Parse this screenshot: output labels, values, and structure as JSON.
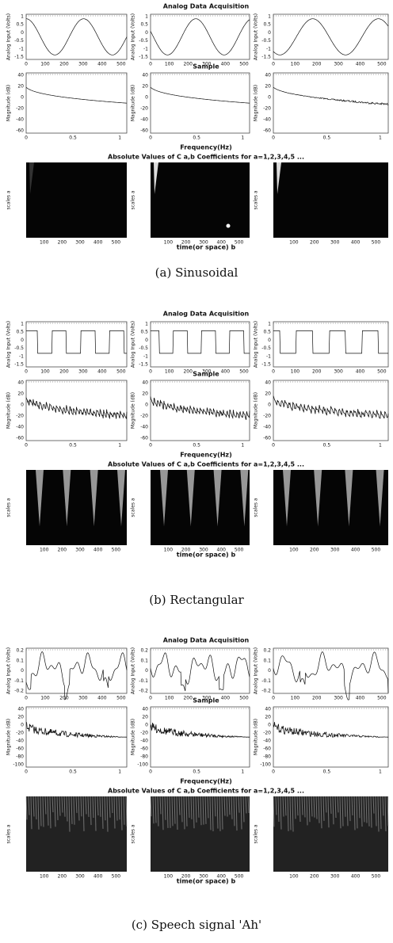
{
  "panels": [
    {
      "caption": "(a) Sinusoidal",
      "title_top": "Analog Data Acquisition",
      "xlabel_top": "Sample",
      "ylabel_top": "Analog Input (Volts)",
      "xticks_top": [
        "0",
        "100",
        "200",
        "300",
        "400",
        "500"
      ],
      "yticks_top": [
        "1",
        "0.5",
        "0",
        "-0.5",
        "-1",
        "-1.5"
      ],
      "xlabel_mid": "Frequency(Hz)",
      "ylabel_mid": "Magnitude (dB)",
      "xticks_mid": [
        "0",
        "0.5",
        "1"
      ],
      "yticks_mid": [
        "40",
        "20",
        "0",
        "-20",
        "-40",
        "-60"
      ],
      "title_bottom": "Absolute Values of C a,b Coefficients for a=1,2,3,4,5 ...",
      "xlabel_bottom": "time(or space) b",
      "ylabel_bottom": "scales a",
      "xticks_bottom": [
        "100",
        "200",
        "300",
        "400",
        "500"
      ]
    },
    {
      "caption": "(b) Rectangular",
      "title_top": "Analog Data Acquisition",
      "xlabel_top": "Sample",
      "ylabel_top": "Analog Input (Volts)",
      "xticks_top": [
        "0",
        "100",
        "200",
        "300",
        "400",
        "500"
      ],
      "yticks_top": [
        "1",
        "0.5",
        "0",
        "-0.5",
        "-1",
        "-1.5"
      ],
      "xlabel_mid": "Frequency(Hz)",
      "ylabel_mid": "Magnitude (dB)",
      "xticks_mid": [
        "0",
        "0.5",
        "1"
      ],
      "yticks_mid": [
        "40",
        "20",
        "0",
        "-20",
        "-40",
        "-60"
      ],
      "title_bottom": "Absolute Values of C a,b Coefficients for a=1,2,3,4,5 ...",
      "xlabel_bottom": "time(or space) b",
      "ylabel_bottom": "scales a",
      "xticks_bottom": [
        "100",
        "200",
        "300",
        "400",
        "500"
      ]
    },
    {
      "caption": "(c) Speech signal 'Ah'",
      "title_top": "Analog Data Acquisition",
      "xlabel_top": "Sample",
      "ylabel_top": "Analog Input (Volts)",
      "xticks_top": [
        "0",
        "100",
        "200",
        "300",
        "400",
        "500"
      ],
      "yticks_top": [
        "0.2",
        "0.1",
        "0",
        "-0.1",
        "-0.2"
      ],
      "xlabel_mid": "Frequency(Hz)",
      "ylabel_mid": "Magnitude (dB)",
      "xticks_mid": [
        "0",
        "0.5",
        "1"
      ],
      "yticks_mid": [
        "40",
        "20",
        "0",
        "-20",
        "-40",
        "-60",
        "-80",
        "-100"
      ],
      "title_bottom": "Absolute Values of C a,b Coefficients for a=1,2,3,4,5 ...",
      "xlabel_bottom": "time(or space) b",
      "ylabel_bottom": "scales a",
      "xticks_bottom": [
        "100",
        "200",
        "300",
        "400",
        "500"
      ]
    }
  ]
}
